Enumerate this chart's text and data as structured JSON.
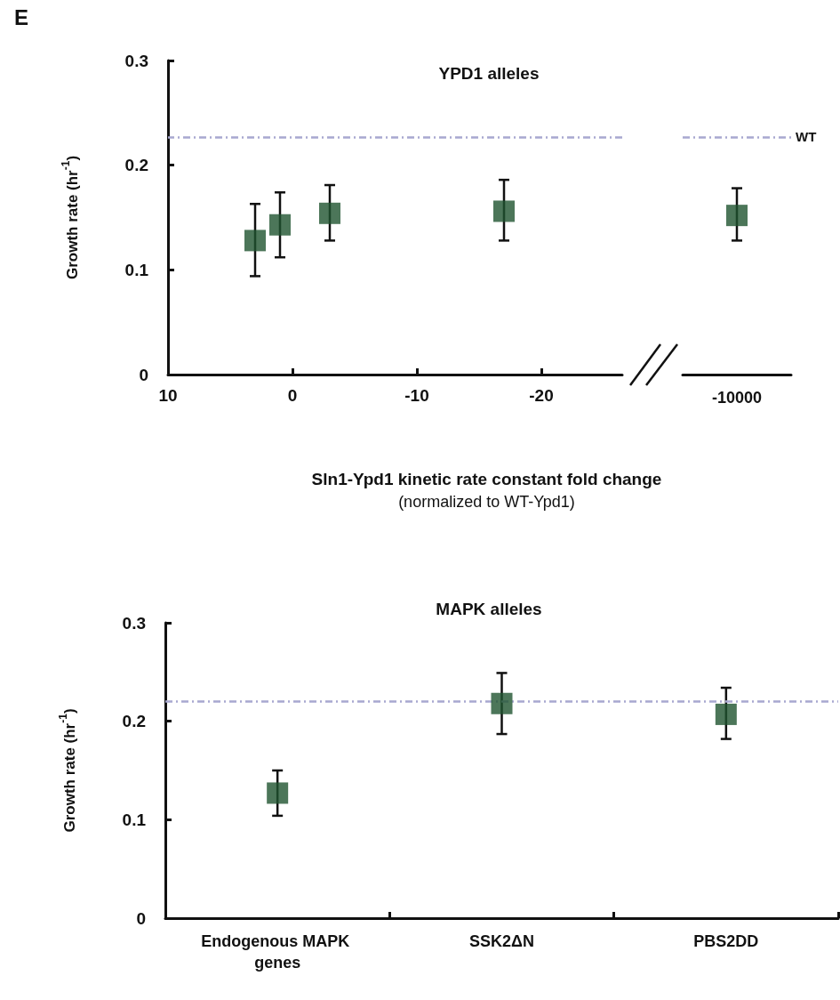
{
  "chart_data": [
    {
      "type": "scatter",
      "title": "YPD1 alleles",
      "xlabel": "Sln1-Ypd1 kinetic rate constant fold change",
      "ylabel": "Growth rate (hr$^{-1}$)",
      "annotations": [
        "E",
        "(normalized to WT-Ypd1)"
      ],
      "x": [
        3,
        1,
        -3,
        -17
      ],
      "values": [
        0.128,
        0.143,
        0.154,
        0.156
      ],
      "errors": [
        [
          0.094,
          0.163
        ],
        [
          0.112,
          0.174
        ],
        [
          0.128,
          0.181
        ],
        [
          0.128,
          0.186
        ]
      ],
      "color": "#1f5430",
      "marker": "square",
      "xlim": [
        10,
        -26.5
      ],
      "xticks": [
        10,
        0,
        -10,
        -20
      ],
      "ylim": [
        0,
        0.3
      ],
      "yticks": [
        0,
        0.1,
        0.2,
        0.3
      ],
      "grid": false,
      "ref_lines": [
        {
          "axis": "y",
          "value": 0.227,
          "color": "#a8a8d0",
          "line_style": "dashed"
        }
      ]
    },
    {
      "type": "scatter",
      "categories": [
        "-10000"
      ],
      "values": [
        0.152
      ],
      "errors": [
        [
          0.128,
          0.178
        ]
      ],
      "color": "#1f5430",
      "marker": "square",
      "ylim": [
        0,
        0.3
      ],
      "tick_labels": "x",
      "grid": false,
      "ref_lines": [
        {
          "axis": "y",
          "value": 0.227,
          "label": "WT",
          "color": "#a8a8d0",
          "line_style": "dashed"
        }
      ]
    },
    {
      "type": "scatter",
      "title": "MAPK alleles",
      "ylabel": "Growth rate (hr$^{-1}$)",
      "categories": [
        "Endogenous MAPK genes",
        "SSK2ΔN",
        "PBS2DD"
      ],
      "values": [
        0.127,
        0.218,
        0.207
      ],
      "errors": [
        [
          0.104,
          0.15
        ],
        [
          0.187,
          0.249
        ],
        [
          0.182,
          0.234
        ]
      ],
      "color": "#1f5430",
      "marker": "square",
      "ylim": [
        0,
        0.3
      ],
      "yticks": [
        0,
        0.1,
        0.2,
        0.3
      ],
      "grid": false,
      "ref_lines": [
        {
          "axis": "y",
          "value": 0.22,
          "color": "#a8a8d0",
          "line_style": "dashed"
        }
      ]
    }
  ]
}
